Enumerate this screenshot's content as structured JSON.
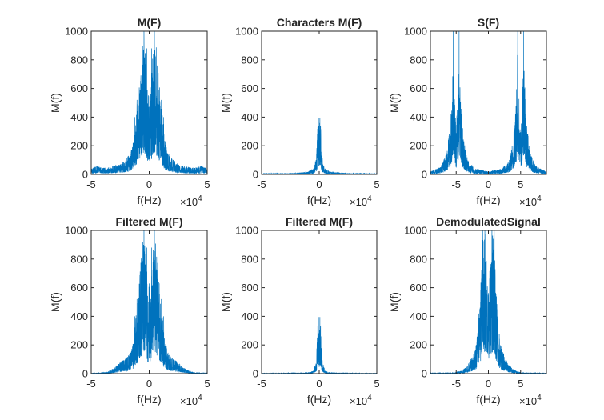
{
  "chart_data": [
    {
      "type": "line",
      "title": "M(F)",
      "xlabel": "f(Hz)",
      "ylabel": "M(f)",
      "x_exponent_label": "×10",
      "x_exponent": "4",
      "xlim": [
        -5,
        5
      ],
      "ylim": [
        0,
        1000
      ],
      "xticks": [
        -5,
        0,
        5
      ],
      "xtick_labels": [
        "-5",
        "0",
        "5"
      ],
      "yticks": [
        0,
        200,
        400,
        600,
        800,
        1000
      ],
      "ytick_labels": [
        "0",
        "200",
        "400",
        "600",
        "800",
        "1000"
      ],
      "grid": false,
      "color": "#0072BD",
      "spectrum": {
        "envelope": [
          [
            -5,
            40
          ],
          [
            -4.5,
            60
          ],
          [
            -4,
            45
          ],
          [
            -3.5,
            50
          ],
          [
            -3,
            60
          ],
          [
            -2.5,
            70
          ],
          [
            -2,
            110
          ],
          [
            -1.6,
            150
          ],
          [
            -1.3,
            250
          ],
          [
            -1.2,
            400
          ],
          [
            -1.0,
            500
          ],
          [
            -0.8,
            700
          ],
          [
            -0.6,
            900
          ],
          [
            -0.45,
            1000
          ],
          [
            -0.3,
            850
          ],
          [
            -0.1,
            500
          ],
          [
            0,
            700
          ],
          [
            0.1,
            500
          ],
          [
            0.3,
            850
          ],
          [
            0.45,
            1000
          ],
          [
            0.6,
            900
          ],
          [
            0.8,
            700
          ],
          [
            1.0,
            500
          ],
          [
            1.2,
            400
          ],
          [
            1.3,
            250
          ],
          [
            1.6,
            150
          ],
          [
            2,
            110
          ],
          [
            2.5,
            70
          ],
          [
            3,
            60
          ],
          [
            3.5,
            50
          ],
          [
            4,
            45
          ],
          [
            4.5,
            60
          ],
          [
            5,
            40
          ]
        ],
        "peaks": [
          [
            -0.45,
            1000
          ],
          [
            0.45,
            1000
          ],
          [
            -0.2,
            880
          ],
          [
            0.2,
            880
          ],
          [
            -1.05,
            520
          ],
          [
            1.05,
            520
          ],
          [
            -1.25,
            400
          ],
          [
            1.25,
            400
          ]
        ]
      }
    },
    {
      "type": "line",
      "title": "Characters M(F)",
      "xlabel": "f(Hz)",
      "ylabel": "M(f)",
      "x_exponent_label": "×10",
      "x_exponent": "4",
      "xlim": [
        -5,
        5
      ],
      "ylim": [
        0,
        1000
      ],
      "xticks": [
        -5,
        0,
        5
      ],
      "xtick_labels": [
        "-5",
        "0",
        "5"
      ],
      "yticks": [
        0,
        200,
        400,
        600,
        800,
        1000
      ],
      "ytick_labels": [
        "0",
        "200",
        "400",
        "600",
        "800",
        "1000"
      ],
      "grid": false,
      "color": "#0072BD",
      "spectrum": {
        "envelope": [
          [
            -5,
            6
          ],
          [
            -3,
            8
          ],
          [
            -2,
            10
          ],
          [
            -1,
            18
          ],
          [
            -0.5,
            40
          ],
          [
            -0.25,
            120
          ],
          [
            -0.12,
            350
          ],
          [
            -0.05,
            390
          ],
          [
            0,
            300
          ],
          [
            0.05,
            390
          ],
          [
            0.12,
            350
          ],
          [
            0.25,
            120
          ],
          [
            0.5,
            40
          ],
          [
            1,
            18
          ],
          [
            2,
            10
          ],
          [
            3,
            8
          ],
          [
            5,
            6
          ]
        ],
        "peaks": [
          [
            -0.06,
            395
          ],
          [
            0.06,
            395
          ],
          [
            -0.12,
            330
          ],
          [
            0.12,
            330
          ]
        ]
      }
    },
    {
      "type": "line",
      "title": "S(F)",
      "xlabel": "f(Hz)",
      "ylabel": "M(f)",
      "x_exponent_label": "×10",
      "x_exponent": "4",
      "xlim": [
        -9,
        9
      ],
      "ylim": [
        0,
        1000
      ],
      "xticks": [
        -5,
        0,
        5
      ],
      "xtick_labels": [
        "-5",
        "0",
        "5"
      ],
      "yticks": [
        0,
        200,
        400,
        600,
        800,
        1000
      ],
      "ytick_labels": [
        "0",
        "200",
        "400",
        "600",
        "800",
        "1000"
      ],
      "grid": false,
      "color": "#0072BD",
      "spectrum": {
        "envelope": [
          [
            -9,
            20
          ],
          [
            -8,
            40
          ],
          [
            -7.2,
            70
          ],
          [
            -6.5,
            150
          ],
          [
            -6.1,
            300
          ],
          [
            -5.8,
            400
          ],
          [
            -5.5,
            850
          ],
          [
            -5.2,
            500
          ],
          [
            -5.0,
            300
          ],
          [
            -4.8,
            500
          ],
          [
            -4.5,
            850
          ],
          [
            -4.2,
            400
          ],
          [
            -3.9,
            300
          ],
          [
            -3.5,
            150
          ],
          [
            -3,
            80
          ],
          [
            -2.5,
            60
          ],
          [
            -2,
            40
          ],
          [
            -1,
            30
          ],
          [
            0,
            20
          ],
          [
            1,
            30
          ],
          [
            2,
            40
          ],
          [
            2.5,
            60
          ],
          [
            3,
            80
          ],
          [
            3.5,
            150
          ],
          [
            3.9,
            300
          ],
          [
            4.2,
            400
          ],
          [
            4.5,
            850
          ],
          [
            4.8,
            500
          ],
          [
            5.0,
            300
          ],
          [
            5.2,
            500
          ],
          [
            5.5,
            850
          ],
          [
            5.8,
            400
          ],
          [
            6.1,
            300
          ],
          [
            6.5,
            150
          ],
          [
            7.2,
            70
          ],
          [
            8,
            40
          ],
          [
            9,
            20
          ]
        ],
        "peaks": [
          [
            -5.45,
            1000
          ],
          [
            -4.55,
            1000
          ],
          [
            4.55,
            1000
          ],
          [
            5.45,
            1000
          ],
          [
            -5.8,
            420
          ],
          [
            -4.2,
            420
          ],
          [
            4.2,
            420
          ],
          [
            5.8,
            420
          ]
        ]
      }
    },
    {
      "type": "line",
      "title": "Filtered M(F)",
      "xlabel": "f(Hz)",
      "ylabel": "M(f)",
      "x_exponent_label": "×10",
      "x_exponent": "4",
      "xlim": [
        -5,
        5
      ],
      "ylim": [
        0,
        1000
      ],
      "xticks": [
        -5,
        0,
        5
      ],
      "xtick_labels": [
        "-5",
        "0",
        "5"
      ],
      "yticks": [
        0,
        200,
        400,
        600,
        800,
        1000
      ],
      "ytick_labels": [
        "0",
        "200",
        "400",
        "600",
        "800",
        "1000"
      ],
      "grid": false,
      "color": "#0072BD",
      "spectrum": {
        "envelope": [
          [
            -5,
            3
          ],
          [
            -4.2,
            5
          ],
          [
            -3.6,
            12
          ],
          [
            -3.0,
            40
          ],
          [
            -2.5,
            80
          ],
          [
            -2,
            110
          ],
          [
            -1.6,
            150
          ],
          [
            -1.3,
            250
          ],
          [
            -1.2,
            400
          ],
          [
            -1.0,
            500
          ],
          [
            -0.8,
            700
          ],
          [
            -0.6,
            900
          ],
          [
            -0.45,
            1000
          ],
          [
            -0.3,
            850
          ],
          [
            -0.1,
            500
          ],
          [
            0,
            700
          ],
          [
            0.1,
            500
          ],
          [
            0.3,
            850
          ],
          [
            0.45,
            1000
          ],
          [
            0.6,
            900
          ],
          [
            0.8,
            700
          ],
          [
            1.0,
            500
          ],
          [
            1.2,
            400
          ],
          [
            1.3,
            250
          ],
          [
            1.6,
            150
          ],
          [
            2,
            110
          ],
          [
            2.5,
            80
          ],
          [
            3.0,
            40
          ],
          [
            3.6,
            12
          ],
          [
            4.2,
            5
          ],
          [
            5,
            3
          ]
        ],
        "peaks": [
          [
            -0.45,
            1000
          ],
          [
            0.45,
            1000
          ],
          [
            -0.2,
            880
          ],
          [
            0.2,
            880
          ],
          [
            -1.05,
            520
          ],
          [
            1.05,
            520
          ],
          [
            -1.25,
            400
          ],
          [
            1.25,
            400
          ]
        ]
      }
    },
    {
      "type": "line",
      "title": "Filtered M(F)",
      "xlabel": "f(Hz)",
      "ylabel": "M(f)",
      "x_exponent_label": "×10",
      "x_exponent": "4",
      "xlim": [
        -5,
        5
      ],
      "ylim": [
        0,
        1000
      ],
      "xticks": [
        -5,
        0,
        5
      ],
      "xtick_labels": [
        "-5",
        "0",
        "5"
      ],
      "yticks": [
        0,
        200,
        400,
        600,
        800,
        1000
      ],
      "ytick_labels": [
        "0",
        "200",
        "400",
        "600",
        "800",
        "1000"
      ],
      "grid": false,
      "color": "#0072BD",
      "spectrum": {
        "envelope": [
          [
            -5,
            2
          ],
          [
            -3,
            3
          ],
          [
            -2,
            4
          ],
          [
            -1,
            6
          ],
          [
            -0.5,
            20
          ],
          [
            -0.25,
            100
          ],
          [
            -0.12,
            340
          ],
          [
            -0.05,
            390
          ],
          [
            0,
            300
          ],
          [
            0.05,
            390
          ],
          [
            0.12,
            340
          ],
          [
            0.25,
            100
          ],
          [
            0.5,
            20
          ],
          [
            1,
            6
          ],
          [
            2,
            4
          ],
          [
            3,
            3
          ],
          [
            5,
            2
          ]
        ],
        "peaks": [
          [
            -0.06,
            395
          ],
          [
            0.06,
            395
          ],
          [
            -0.12,
            330
          ],
          [
            0.12,
            330
          ]
        ]
      }
    },
    {
      "type": "line",
      "title": "DemodulatedSignal",
      "xlabel": "f(Hz)",
      "ylabel": "M(f)",
      "x_exponent_label": "×10",
      "x_exponent": "4",
      "xlim": [
        -9,
        9
      ],
      "ylim": [
        0,
        1000
      ],
      "xticks": [
        -5,
        0,
        5
      ],
      "xtick_labels": [
        "-5",
        "0",
        "5"
      ],
      "yticks": [
        0,
        200,
        400,
        600,
        800,
        1000
      ],
      "ytick_labels": [
        "0",
        "200",
        "400",
        "600",
        "800",
        "1000"
      ],
      "grid": false,
      "color": "#0072BD",
      "spectrum": {
        "envelope": [
          [
            -9,
            3
          ],
          [
            -6,
            5
          ],
          [
            -5,
            8
          ],
          [
            -4,
            25
          ],
          [
            -3.2,
            60
          ],
          [
            -2.5,
            120
          ],
          [
            -2,
            180
          ],
          [
            -1.5,
            350
          ],
          [
            -1.2,
            600
          ],
          [
            -0.9,
            950
          ],
          [
            -0.55,
            1000
          ],
          [
            -0.3,
            850
          ],
          [
            0,
            600
          ],
          [
            0.3,
            850
          ],
          [
            0.55,
            1000
          ],
          [
            0.9,
            950
          ],
          [
            1.2,
            600
          ],
          [
            1.5,
            350
          ],
          [
            2,
            180
          ],
          [
            2.5,
            120
          ],
          [
            3.2,
            60
          ],
          [
            4,
            25
          ],
          [
            5,
            8
          ],
          [
            6,
            5
          ],
          [
            9,
            3
          ]
        ],
        "peaks": [
          [
            -0.55,
            1000
          ],
          [
            0.55,
            1000
          ],
          [
            -0.9,
            1000
          ],
          [
            0.9,
            1000
          ],
          [
            -1.5,
            420
          ],
          [
            1.5,
            420
          ]
        ]
      }
    }
  ]
}
